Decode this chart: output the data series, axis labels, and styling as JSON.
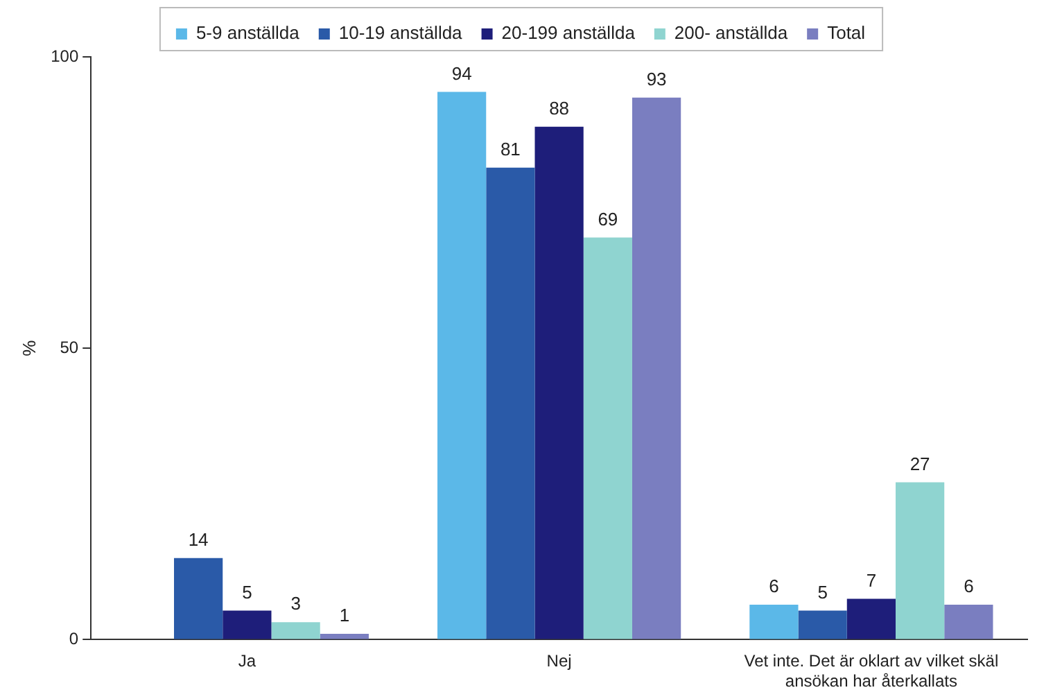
{
  "chart_data": {
    "type": "bar",
    "ylabel": "%",
    "categories": [
      "Ja",
      "Nej",
      "Vet inte. Det är oklart av vilket skäl ansökan har återkallats"
    ],
    "series": [
      {
        "name": "5-9 anställda",
        "color": "#5bb8e8",
        "values": [
          null,
          94,
          6
        ]
      },
      {
        "name": "10-19 anställda",
        "color": "#2a5aa8",
        "values": [
          14,
          81,
          5
        ]
      },
      {
        "name": "20-199 anställda",
        "color": "#1e1e7a",
        "values": [
          5,
          88,
          7
        ]
      },
      {
        "name": "200- anställda",
        "color": "#8fd4d0",
        "values": [
          3,
          69,
          27
        ]
      },
      {
        "name": "Total",
        "color": "#7a7ec0",
        "values": [
          1,
          93,
          6
        ]
      }
    ],
    "ylim": [
      0,
      100
    ],
    "yticks": [
      0,
      50,
      100
    ],
    "grid": false,
    "legend": "top",
    "data_labels": true
  }
}
